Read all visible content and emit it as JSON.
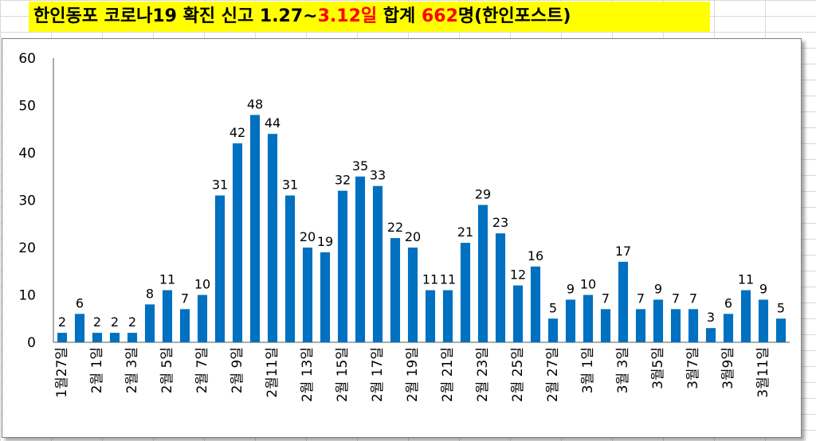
{
  "title": {
    "part1": "한인동포 코로나19 확진 신고 1.27~",
    "highlight1": "3.12일",
    "part2": " 합계 ",
    "highlight2": "662",
    "part3": "명(한인포스트)"
  },
  "colors": {
    "bar": "#0070c0",
    "title_bg": "#ffff00",
    "highlight": "#ff0000"
  },
  "chart_data": {
    "type": "bar",
    "title": "한인동포 코로나19 확진 신고 1.27~3.12일 합계 662명(한인포스트)",
    "ylim": [
      0,
      60
    ],
    "yticks": [
      0,
      10,
      20,
      30,
      40,
      50,
      60
    ],
    "grid": false,
    "legend": "none",
    "categories": [
      "1월27일",
      "",
      "2월 1일",
      "",
      "2월 3일",
      "",
      "2월 5일",
      "",
      "2월 7일",
      "",
      "2월 9일",
      "",
      "2월11일",
      "",
      "2월 13일",
      "",
      "2월 15일",
      "",
      "2월 17일",
      "",
      "2월 19일",
      "",
      "2월 21일",
      "",
      "2월 23일",
      "",
      "2월 25일",
      "",
      "2월 27일",
      "",
      "3월 1일",
      "",
      "3월 3일",
      "",
      "3월5일",
      "",
      "3월7일",
      "",
      "3월9일",
      "",
      "3월11일",
      ""
    ],
    "values": [
      2,
      6,
      2,
      2,
      2,
      8,
      11,
      7,
      10,
      31,
      42,
      48,
      44,
      31,
      20,
      19,
      32,
      35,
      33,
      22,
      20,
      11,
      11,
      21,
      29,
      23,
      12,
      16,
      5,
      9,
      10,
      7,
      17,
      7,
      9,
      7,
      7,
      3,
      6,
      11,
      9,
      5
    ],
    "data_labels": [
      "2",
      "6",
      "2",
      "2",
      "2",
      "8",
      "11",
      "7",
      "10",
      "31",
      "42",
      "48",
      "44",
      "31",
      "20",
      "19",
      "32",
      "35",
      "33",
      "22",
      "20",
      "11",
      "11",
      "21",
      "29",
      "23",
      "12",
      "16",
      "5",
      "9",
      "10",
      "7",
      "17",
      "7",
      "9",
      "7",
      "7",
      "3",
      "6",
      "11",
      "9",
      "5"
    ]
  }
}
